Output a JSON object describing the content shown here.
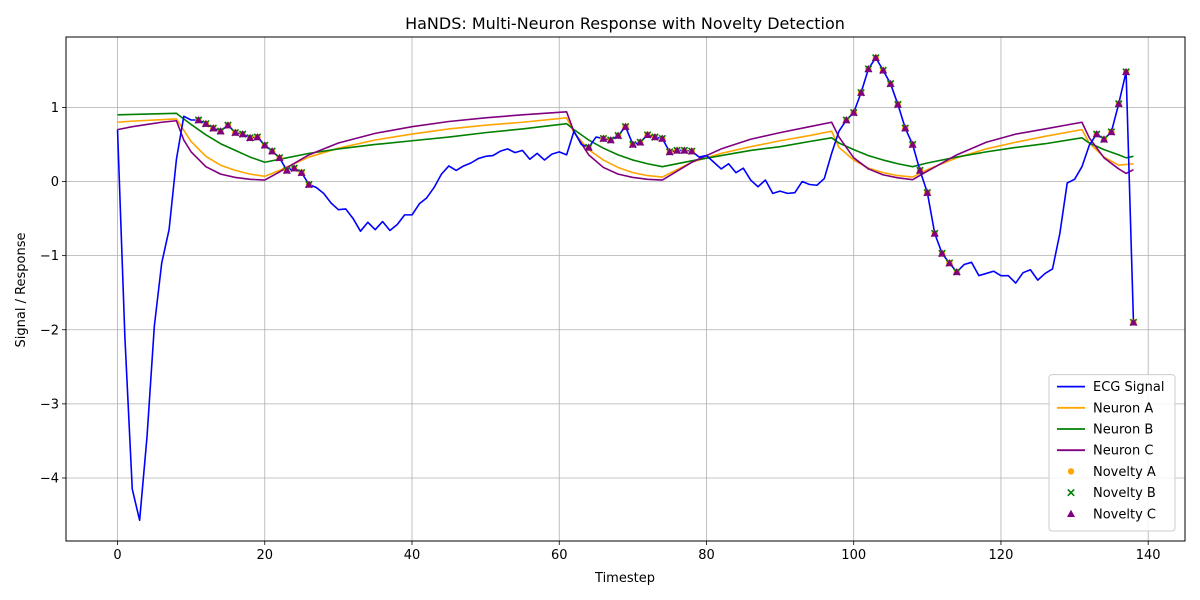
{
  "chart_data": {
    "type": "line",
    "title": "HaNDS: Multi-Neuron Response with Novelty Detection",
    "xlabel": "Timestep",
    "ylabel": "Signal / Response",
    "xlim": [
      -7,
      145
    ],
    "ylim": [
      -4.85,
      1.95
    ],
    "xticks": [
      0,
      20,
      40,
      60,
      80,
      100,
      120,
      140
    ],
    "yticks": [
      1,
      0,
      -1,
      -2,
      -3,
      -4
    ],
    "ytick_labels": [
      "1",
      "0",
      "−1",
      "−2",
      "−3",
      "−4"
    ],
    "grid": true,
    "legend_position": "lower-right",
    "series": [
      {
        "name": "ECG Signal",
        "color": "#0000ff",
        "style": "line",
        "x": [
          0,
          1,
          2,
          3,
          4,
          5,
          6,
          7,
          8,
          9,
          10,
          11,
          12,
          13,
          14,
          15,
          16,
          17,
          18,
          19,
          20,
          21,
          22,
          23,
          24,
          25,
          26,
          27,
          28,
          29,
          30,
          31,
          32,
          33,
          34,
          35,
          36,
          37,
          38,
          39,
          40,
          41,
          42,
          43,
          44,
          45,
          46,
          47,
          48,
          49,
          50,
          51,
          52,
          53,
          54,
          55,
          56,
          57,
          58,
          59,
          60,
          61,
          62,
          63,
          64,
          65,
          66,
          67,
          68,
          69,
          70,
          71,
          72,
          73,
          74,
          75,
          76,
          77,
          78,
          79,
          80,
          81,
          82,
          83,
          84,
          85,
          86,
          87,
          88,
          89,
          90,
          91,
          92,
          93,
          94,
          95,
          96,
          97,
          98,
          99,
          100,
          101,
          102,
          103,
          104,
          105,
          106,
          107,
          108,
          109,
          110,
          111,
          112,
          113,
          114,
          115,
          116,
          117,
          118,
          119,
          120,
          121,
          122,
          123,
          124,
          125,
          126,
          127,
          128,
          129,
          130,
          131,
          132,
          133,
          134,
          135,
          136,
          137,
          138
        ],
        "y": [
          0.7,
          -2.1,
          -4.15,
          -4.57,
          -3.45,
          -1.95,
          -1.1,
          -0.65,
          0.3,
          0.88,
          0.83,
          0.83,
          0.78,
          0.72,
          0.68,
          0.76,
          0.66,
          0.64,
          0.59,
          0.6,
          0.49,
          0.41,
          0.32,
          0.15,
          0.18,
          0.12,
          -0.04,
          -0.08,
          -0.16,
          -0.29,
          -0.38,
          -0.37,
          -0.5,
          -0.67,
          -0.55,
          -0.65,
          -0.54,
          -0.66,
          -0.58,
          -0.45,
          -0.45,
          -0.3,
          -0.22,
          -0.08,
          0.1,
          0.21,
          0.15,
          0.21,
          0.25,
          0.31,
          0.34,
          0.35,
          0.41,
          0.44,
          0.39,
          0.42,
          0.3,
          0.38,
          0.29,
          0.37,
          0.4,
          0.36,
          0.68,
          0.5,
          0.46,
          0.6,
          0.58,
          0.56,
          0.62,
          0.74,
          0.5,
          0.53,
          0.63,
          0.6,
          0.58,
          0.4,
          0.42,
          0.42,
          0.41,
          0.33,
          0.35,
          0.26,
          0.17,
          0.24,
          0.12,
          0.18,
          0.02,
          -0.07,
          0.02,
          -0.16,
          -0.13,
          -0.16,
          -0.15,
          0.0,
          -0.04,
          -0.05,
          0.04,
          0.38,
          0.68,
          0.83,
          0.93,
          1.2,
          1.52,
          1.67,
          1.5,
          1.32,
          1.04,
          0.72,
          0.5,
          0.15,
          -0.15,
          -0.7,
          -0.97,
          -1.1,
          -1.22,
          -1.12,
          -1.09,
          -1.27,
          -1.24,
          -1.21,
          -1.27,
          -1.27,
          -1.37,
          -1.23,
          -1.19,
          -1.33,
          -1.24,
          -1.18,
          -0.7,
          -0.02,
          0.03,
          0.2,
          0.49,
          0.64,
          0.57,
          0.67,
          1.05,
          1.48,
          -1.9
        ]
      },
      {
        "name": "Neuron A",
        "color": "#ffa500",
        "style": "line",
        "x": [
          0,
          2,
          4,
          6,
          8,
          10,
          12,
          14,
          16,
          18,
          20,
          22,
          26,
          30,
          35,
          40,
          45,
          50,
          55,
          61,
          62,
          64,
          66,
          68,
          70,
          72,
          74,
          78,
          82,
          86,
          90,
          94,
          97,
          98,
          100,
          102,
          104,
          106,
          108,
          110,
          114,
          118,
          122,
          126,
          131,
          132,
          134,
          136,
          138
        ],
        "y": [
          0.8,
          0.815,
          0.825,
          0.835,
          0.845,
          0.54,
          0.34,
          0.22,
          0.15,
          0.1,
          0.07,
          0.15,
          0.33,
          0.45,
          0.56,
          0.64,
          0.71,
          0.76,
          0.8,
          0.86,
          0.66,
          0.43,
          0.29,
          0.19,
          0.12,
          0.08,
          0.06,
          0.26,
          0.38,
          0.47,
          0.55,
          0.62,
          0.68,
          0.46,
          0.29,
          0.18,
          0.12,
          0.08,
          0.06,
          0.16,
          0.32,
          0.44,
          0.53,
          0.61,
          0.7,
          0.52,
          0.33,
          0.22,
          0.24
        ]
      },
      {
        "name": "Neuron B",
        "color": "#008000",
        "style": "line",
        "x": [
          0,
          2,
          4,
          6,
          8,
          10,
          12,
          14,
          16,
          18,
          20,
          22,
          26,
          30,
          35,
          40,
          45,
          50,
          55,
          61,
          62,
          64,
          66,
          68,
          70,
          72,
          74,
          78,
          82,
          86,
          90,
          94,
          97,
          98,
          100,
          102,
          104,
          106,
          108,
          110,
          114,
          118,
          122,
          126,
          131,
          132,
          134,
          136,
          137,
          138
        ],
        "y": [
          0.9,
          0.905,
          0.91,
          0.915,
          0.92,
          0.77,
          0.63,
          0.51,
          0.42,
          0.33,
          0.26,
          0.3,
          0.38,
          0.44,
          0.5,
          0.55,
          0.6,
          0.66,
          0.71,
          0.78,
          0.7,
          0.56,
          0.45,
          0.36,
          0.29,
          0.24,
          0.2,
          0.28,
          0.35,
          0.42,
          0.47,
          0.54,
          0.59,
          0.52,
          0.43,
          0.35,
          0.29,
          0.24,
          0.2,
          0.25,
          0.33,
          0.4,
          0.46,
          0.51,
          0.59,
          0.52,
          0.43,
          0.36,
          0.32,
          0.34
        ]
      },
      {
        "name": "Neuron C",
        "color": "#800080",
        "style": "line",
        "x": [
          0,
          2,
          4,
          6,
          8,
          9,
          10,
          12,
          14,
          16,
          18,
          20,
          22,
          26,
          30,
          35,
          40,
          45,
          50,
          55,
          61,
          62,
          64,
          66,
          68,
          70,
          72,
          74,
          78,
          82,
          86,
          90,
          94,
          97,
          98,
          100,
          102,
          104,
          106,
          108,
          110,
          114,
          118,
          122,
          126,
          131,
          132,
          134,
          136,
          137,
          138
        ],
        "y": [
          0.7,
          0.74,
          0.77,
          0.8,
          0.82,
          0.56,
          0.4,
          0.2,
          0.1,
          0.055,
          0.03,
          0.02,
          0.13,
          0.36,
          0.52,
          0.65,
          0.74,
          0.81,
          0.86,
          0.9,
          0.94,
          0.67,
          0.36,
          0.19,
          0.1,
          0.055,
          0.03,
          0.02,
          0.26,
          0.44,
          0.57,
          0.66,
          0.74,
          0.8,
          0.6,
          0.32,
          0.17,
          0.09,
          0.05,
          0.025,
          0.14,
          0.36,
          0.53,
          0.64,
          0.71,
          0.8,
          0.59,
          0.32,
          0.17,
          0.11,
          0.16
        ]
      },
      {
        "name": "Novelty A",
        "color": "#ffa500",
        "style": "scatter",
        "marker": "circle",
        "x": [
          11,
          12,
          13,
          14,
          15,
          16,
          17,
          18,
          19,
          20,
          21,
          22,
          23,
          24,
          25,
          26,
          64,
          66,
          67,
          68,
          69,
          70,
          71,
          72,
          73,
          74,
          75,
          76,
          77,
          78,
          99,
          100,
          101,
          102,
          103,
          104,
          105,
          106,
          107,
          108,
          109,
          110,
          111,
          112,
          113,
          114,
          133,
          134,
          135,
          136,
          137,
          138
        ],
        "y": [
          0.83,
          0.78,
          0.72,
          0.68,
          0.76,
          0.66,
          0.64,
          0.59,
          0.6,
          0.49,
          0.41,
          0.32,
          0.15,
          0.18,
          0.12,
          -0.04,
          0.46,
          0.58,
          0.56,
          0.62,
          0.74,
          0.5,
          0.53,
          0.63,
          0.6,
          0.58,
          0.4,
          0.42,
          0.42,
          0.41,
          0.83,
          0.93,
          1.2,
          1.52,
          1.67,
          1.5,
          1.32,
          1.04,
          0.72,
          0.5,
          0.15,
          -0.15,
          -0.7,
          -0.97,
          -1.1,
          -1.22,
          0.64,
          0.57,
          0.67,
          1.05,
          1.48,
          -1.9
        ]
      },
      {
        "name": "Novelty B",
        "color": "#008000",
        "style": "scatter",
        "marker": "x",
        "x": [
          11,
          12,
          13,
          14,
          15,
          16,
          17,
          18,
          19,
          20,
          21,
          22,
          23,
          24,
          25,
          26,
          64,
          66,
          67,
          68,
          69,
          70,
          71,
          72,
          73,
          74,
          75,
          76,
          77,
          78,
          99,
          100,
          101,
          102,
          103,
          104,
          105,
          106,
          107,
          108,
          109,
          110,
          111,
          112,
          113,
          114,
          133,
          134,
          135,
          136,
          137,
          138
        ],
        "y": [
          0.83,
          0.78,
          0.72,
          0.68,
          0.76,
          0.66,
          0.64,
          0.59,
          0.6,
          0.49,
          0.41,
          0.32,
          0.15,
          0.18,
          0.12,
          -0.04,
          0.46,
          0.58,
          0.56,
          0.62,
          0.74,
          0.5,
          0.53,
          0.63,
          0.6,
          0.58,
          0.4,
          0.42,
          0.42,
          0.41,
          0.83,
          0.93,
          1.2,
          1.52,
          1.67,
          1.5,
          1.32,
          1.04,
          0.72,
          0.5,
          0.15,
          -0.15,
          -0.7,
          -0.97,
          -1.1,
          -1.22,
          0.64,
          0.57,
          0.67,
          1.05,
          1.48,
          -1.9
        ]
      },
      {
        "name": "Novelty C",
        "color": "#800080",
        "style": "scatter",
        "marker": "triangle",
        "x": [
          11,
          12,
          13,
          14,
          15,
          16,
          17,
          18,
          19,
          20,
          21,
          22,
          23,
          24,
          25,
          26,
          64,
          66,
          67,
          68,
          69,
          70,
          71,
          72,
          73,
          74,
          75,
          76,
          77,
          78,
          99,
          100,
          101,
          102,
          103,
          104,
          105,
          106,
          107,
          108,
          109,
          110,
          111,
          112,
          113,
          114,
          133,
          134,
          135,
          136,
          137,
          138
        ],
        "y": [
          0.83,
          0.78,
          0.72,
          0.68,
          0.76,
          0.66,
          0.64,
          0.59,
          0.6,
          0.49,
          0.41,
          0.32,
          0.15,
          0.18,
          0.12,
          -0.04,
          0.46,
          0.58,
          0.56,
          0.62,
          0.74,
          0.5,
          0.53,
          0.63,
          0.6,
          0.58,
          0.4,
          0.42,
          0.42,
          0.41,
          0.83,
          0.93,
          1.2,
          1.52,
          1.67,
          1.5,
          1.32,
          1.04,
          0.72,
          0.5,
          0.15,
          -0.15,
          -0.7,
          -0.97,
          -1.1,
          -1.22,
          0.64,
          0.57,
          0.67,
          1.05,
          1.48,
          -1.9
        ]
      }
    ]
  }
}
